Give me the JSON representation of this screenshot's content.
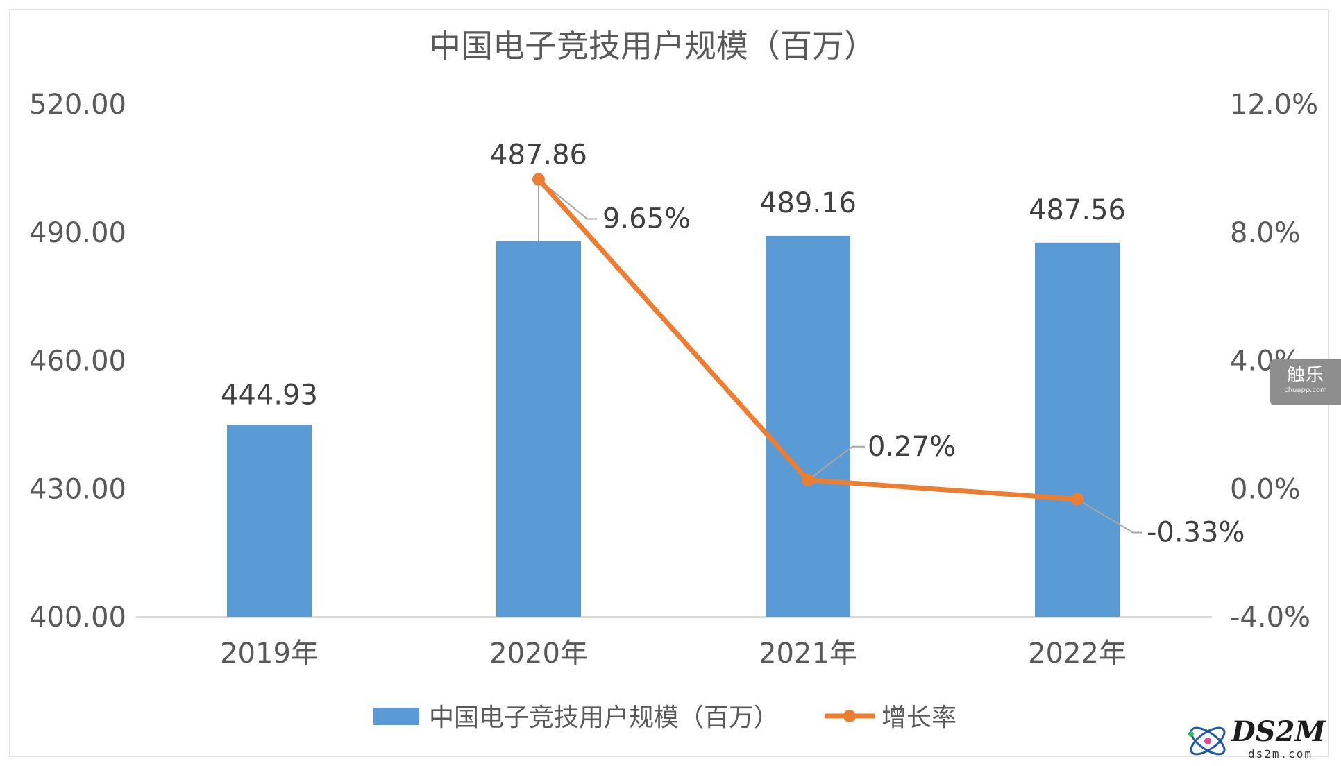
{
  "chart_data": {
    "type": "bar",
    "title": "中国电子竞技用户规模（百万）",
    "categories": [
      "2019年",
      "2020年",
      "2021年",
      "2022年"
    ],
    "series": [
      {
        "name": "中国电子竞技用户规模（百万）",
        "type": "bar",
        "axis": "left",
        "values": [
          444.93,
          487.86,
          489.16,
          487.56
        ],
        "labels": [
          "444.93",
          "487.86",
          "489.16",
          "487.56"
        ],
        "color": "#5b9bd5"
      },
      {
        "name": "增长率",
        "type": "line",
        "axis": "right",
        "values": [
          null,
          9.65,
          0.27,
          -0.33
        ],
        "labels": [
          "",
          "9.65%",
          "0.27%",
          "-0.33%"
        ],
        "color": "#ed7d31"
      }
    ],
    "y_left": {
      "ylim": [
        400,
        520
      ],
      "ticks": [
        400,
        430,
        460,
        490,
        520
      ],
      "tick_labels": [
        "400.00",
        "430.00",
        "460.00",
        "490.00",
        "520.00"
      ]
    },
    "y_right": {
      "ylim": [
        -4,
        12
      ],
      "ticks": [
        -4,
        0,
        4,
        8,
        12
      ],
      "tick_labels": [
        "-4.0%",
        "0.0%",
        "4.0%",
        "8.0%",
        "12.0%"
      ]
    },
    "xlabel": "",
    "ylabel": "",
    "grid": false,
    "legend_position": "bottom"
  },
  "colors": {
    "bar": "#5b9bd5",
    "line": "#ed7d31",
    "text": "#595959",
    "label": "#404040",
    "axis": "#d9d9d9",
    "leader": "#a6a6a6"
  },
  "overlays": {
    "badge_main": "触乐",
    "badge_sub": "chuapp.com",
    "watermark_main": "DS2M",
    "watermark_sub": "ds2m.com"
  }
}
